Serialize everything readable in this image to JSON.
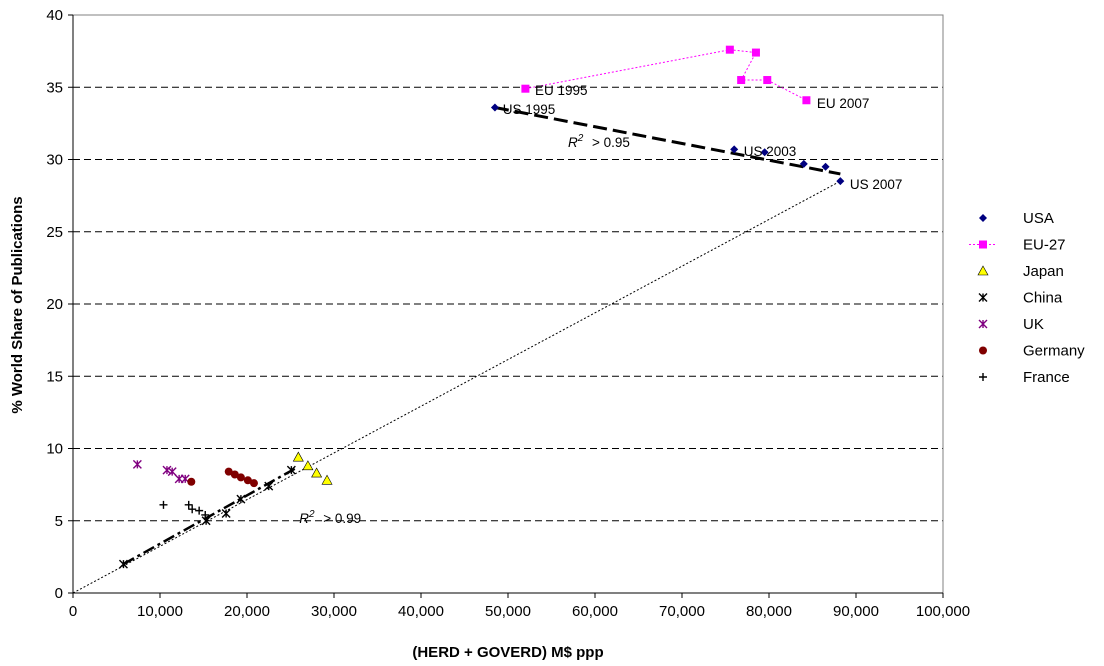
{
  "chart_data": {
    "type": "scatter",
    "title": "",
    "xlabel": "(HERD + GOVERD) M$ ppp",
    "ylabel": "% World Share of Publications",
    "xlim": [
      0,
      100000
    ],
    "ylim": [
      0,
      40
    ],
    "x_ticks": [
      0,
      10000,
      20000,
      30000,
      40000,
      50000,
      60000,
      70000,
      80000,
      90000,
      100000
    ],
    "x_tick_labels": [
      "0",
      "10,000",
      "20,000",
      "30,000",
      "40,000",
      "50,000",
      "60,000",
      "70,000",
      "80,000",
      "90,000",
      "100,000"
    ],
    "y_ticks": [
      0,
      5,
      10,
      15,
      20,
      25,
      30,
      35,
      40
    ],
    "y_tick_labels": [
      "0",
      "5",
      "10",
      "15",
      "20",
      "25",
      "30",
      "35",
      "40"
    ],
    "grid": "horizontal dashed",
    "legend_position": "right",
    "series": [
      {
        "name": "USA",
        "marker": "diamond",
        "color": "#000080",
        "connected": false,
        "points": [
          [
            48500,
            33.6
          ],
          [
            76000,
            30.7
          ],
          [
            79500,
            30.5
          ],
          [
            84000,
            29.7
          ],
          [
            86500,
            29.5
          ],
          [
            88200,
            28.5
          ]
        ]
      },
      {
        "name": "EU-27",
        "marker": "square",
        "color": "#FF00FF",
        "connected": true,
        "points": [
          [
            52000,
            34.9
          ],
          [
            75500,
            37.6
          ],
          [
            78500,
            37.4
          ],
          [
            76800,
            35.5
          ],
          [
            79800,
            35.5
          ],
          [
            84300,
            34.1
          ]
        ]
      },
      {
        "name": "Japan",
        "marker": "triangle",
        "color": "#FFFF00",
        "connected": false,
        "points": [
          [
            25900,
            9.4
          ],
          [
            27000,
            8.8
          ],
          [
            28000,
            8.3
          ],
          [
            29200,
            7.8
          ]
        ]
      },
      {
        "name": "China",
        "marker": "asterisk",
        "color": "#000000",
        "connected": false,
        "points": [
          [
            5800,
            2.0
          ],
          [
            15300,
            5.0
          ],
          [
            17600,
            5.5
          ],
          [
            19300,
            6.5
          ],
          [
            22500,
            7.4
          ],
          [
            25100,
            8.5
          ]
        ]
      },
      {
        "name": "UK",
        "marker": "asterisk",
        "color": "#800080",
        "connected": false,
        "points": [
          [
            7400,
            8.9
          ],
          [
            10800,
            8.5
          ],
          [
            11400,
            8.4
          ],
          [
            12200,
            7.9
          ],
          [
            12900,
            7.9
          ]
        ]
      },
      {
        "name": "Germany",
        "marker": "circle",
        "color": "#800000",
        "connected": false,
        "points": [
          [
            13600,
            7.7
          ],
          [
            17900,
            8.4
          ],
          [
            18600,
            8.2
          ],
          [
            19300,
            8.0
          ],
          [
            20100,
            7.8
          ],
          [
            20800,
            7.6
          ]
        ]
      },
      {
        "name": "France",
        "marker": "plus",
        "color": "#000000",
        "connected": false,
        "points": [
          [
            10400,
            6.1
          ],
          [
            13300,
            6.1
          ],
          [
            13700,
            5.8
          ],
          [
            14500,
            5.7
          ],
          [
            15200,
            5.4
          ]
        ]
      }
    ],
    "trendlines": [
      {
        "style": "long-dash",
        "from": [
          48500,
          33.6
        ],
        "to": [
          88200,
          29.0
        ]
      },
      {
        "style": "dash-dot",
        "from": [
          5800,
          2.0
        ],
        "to": [
          25500,
          8.6
        ]
      },
      {
        "style": "dotted",
        "from": [
          0,
          0
        ],
        "to": [
          88200,
          28.5
        ]
      }
    ],
    "annotations": [
      {
        "text": "EU 1995",
        "x": 53100,
        "y": 34.8
      },
      {
        "text": "US 1995",
        "x": 49400,
        "y": 33.5
      },
      {
        "text": "US 2003",
        "x": 77100,
        "y": 30.6
      },
      {
        "text": "EU 2007",
        "x": 85500,
        "y": 33.9
      },
      {
        "text": "US 2007",
        "x": 89300,
        "y": 28.3
      }
    ],
    "r2_labels": [
      {
        "text": "> 0.95",
        "x": 56900,
        "y": 31.2
      },
      {
        "text": "> 0.99",
        "x": 26000,
        "y": 5.2
      }
    ]
  }
}
